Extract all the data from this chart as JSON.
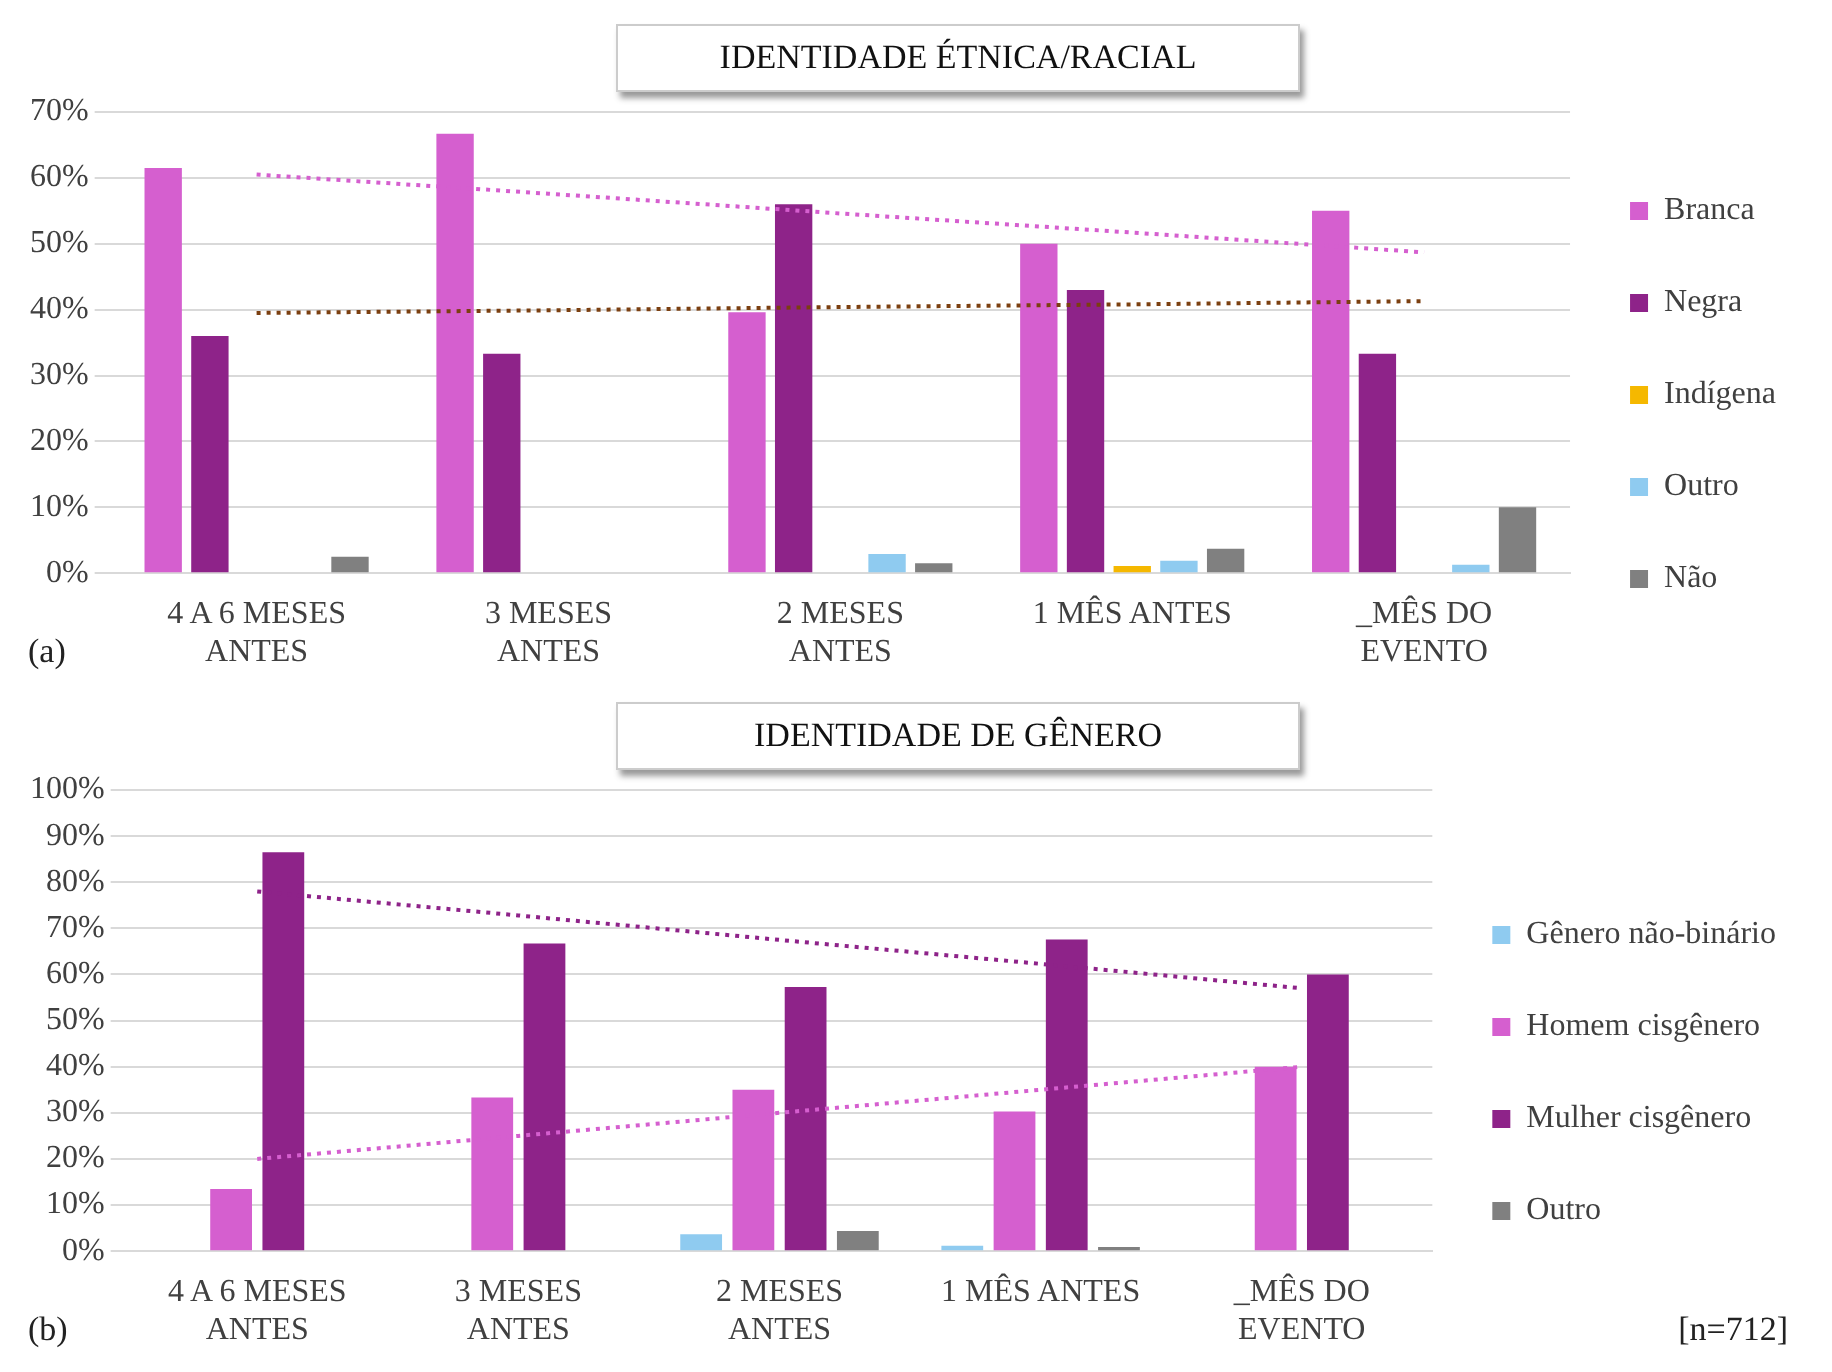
{
  "chart_data": [
    {
      "type": "bar",
      "title": "IDENTIDADE ÉTNICA/RACIAL",
      "categories": [
        "4 A 6 MESES ANTES",
        "3 MESES ANTES",
        "2 MESES ANTES",
        "1 MÊS ANTES",
        "_MÊS DO EVENTO"
      ],
      "series": [
        {
          "name": "Branca",
          "color": "#d55fcf",
          "values": [
            61.5,
            66.7,
            39.6,
            50,
            55
          ]
        },
        {
          "name": "Negra",
          "color": "#8e2389",
          "values": [
            36,
            33.3,
            56,
            43,
            33.3
          ]
        },
        {
          "name": "Indígena",
          "color": "#f5b800",
          "values": [
            0,
            0,
            0,
            1.1,
            0
          ]
        },
        {
          "name": "Outro",
          "color": "#8fcbf0",
          "values": [
            0,
            0,
            2.9,
            1.9,
            1.3
          ]
        },
        {
          "name": "Não",
          "color": "#808080",
          "values": [
            2.5,
            0,
            1.5,
            3.7,
            10
          ]
        },
        {
          "type": "line",
          "color": "#d55fcf",
          "line_style": "dotted",
          "marker": "none",
          "values": [
            60.5,
            57.6,
            54.6,
            51.7,
            48.7
          ]
        },
        {
          "type": "line",
          "color": "#7b3f10",
          "line_style": "dotted",
          "marker": "none",
          "values": [
            39.5,
            39.9,
            40.4,
            40.8,
            41.3
          ]
        }
      ],
      "ylim": [
        0,
        70
      ],
      "yticks": [
        {
          "value": 0,
          "label": "0%"
        },
        {
          "value": 10,
          "label": "10%"
        },
        {
          "value": 20,
          "label": "20%"
        },
        {
          "value": 30,
          "label": "30%"
        },
        {
          "value": 40,
          "label": "40%"
        },
        {
          "value": 50,
          "label": "50%"
        },
        {
          "value": 60,
          "label": "60%"
        },
        {
          "value": 70,
          "label": "70%"
        }
      ],
      "grid": "y",
      "legend": "right",
      "annotations": [
        "(a)"
      ]
    },
    {
      "type": "bar",
      "title": "IDENTIDADE DE GÊNERO",
      "categories": [
        "4 A 6 MESES ANTES",
        "3 MESES ANTES",
        "2 MESES ANTES",
        "1 MÊS ANTES",
        "_MÊS DO EVENTO"
      ],
      "series": [
        {
          "name": "Gênero não-binário",
          "color": "#8fcbf0",
          "values": [
            0,
            0,
            3.7,
            1.2,
            0
          ]
        },
        {
          "name": "Homem cisgênero",
          "color": "#d55fcf",
          "values": [
            13.5,
            33.3,
            35,
            30.3,
            40
          ]
        },
        {
          "name": "Mulher cisgênero",
          "color": "#8e2389",
          "values": [
            86.5,
            66.7,
            57.3,
            67.6,
            60
          ]
        },
        {
          "name": "Outro",
          "color": "#808080",
          "values": [
            0,
            0,
            4.4,
            0.9,
            0
          ]
        },
        {
          "type": "line",
          "color": "#8e2389",
          "line_style": "dotted",
          "marker": "none",
          "values": [
            78,
            72.8,
            67.5,
            62.3,
            57
          ]
        },
        {
          "type": "line",
          "color": "#d55fcf",
          "line_style": "dotted",
          "marker": "none",
          "values": [
            20,
            25,
            30,
            35,
            40
          ]
        }
      ],
      "ylim": [
        0,
        100
      ],
      "yticks": [
        {
          "value": 0,
          "label": "0%"
        },
        {
          "value": 10,
          "label": "10%"
        },
        {
          "value": 20,
          "label": "20%"
        },
        {
          "value": 30,
          "label": "30%"
        },
        {
          "value": 40,
          "label": "40%"
        },
        {
          "value": 50,
          "label": "50%"
        },
        {
          "value": 60,
          "label": "60%"
        },
        {
          "value": 70,
          "label": "70%"
        },
        {
          "value": 80,
          "label": "80%"
        },
        {
          "value": 90,
          "label": "90%"
        },
        {
          "value": 100,
          "label": "100%"
        }
      ],
      "grid": "y",
      "legend": "right",
      "annotations": [
        "(b)",
        "[n=712]"
      ]
    }
  ]
}
